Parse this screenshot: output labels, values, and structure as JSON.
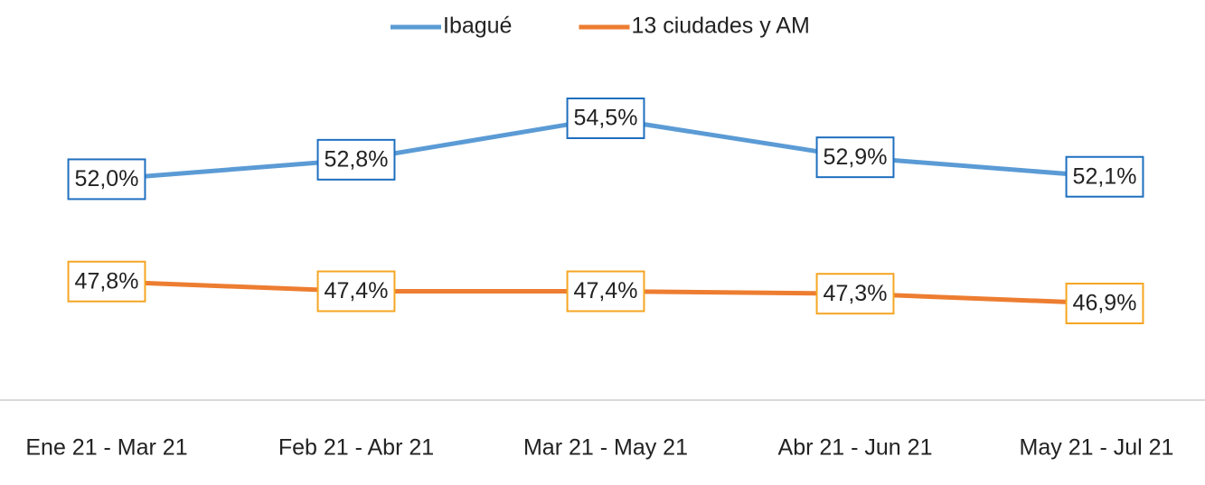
{
  "chart_data": {
    "type": "line",
    "categories": [
      "Ene 21 - Mar 21",
      "Feb 21 - Abr 21",
      "Mar 21 - May 21",
      "Abr 21 - Jun 21",
      "May 21 - Jul 21"
    ],
    "series": [
      {
        "name": "Ibagué",
        "color": "#5b9bd5",
        "label_border": "#1f6fbf",
        "values": [
          52.0,
          52.8,
          54.5,
          52.9,
          52.1
        ],
        "value_labels": [
          "52,0%",
          "52,8%",
          "54,5%",
          "52,9%",
          "52,1%"
        ]
      },
      {
        "name": "13 ciudades y AM",
        "color": "#ed7d31",
        "label_border": "#f5a623",
        "values": [
          47.8,
          47.4,
          47.4,
          47.3,
          46.9
        ],
        "value_labels": [
          "47,8%",
          "47,4%",
          "47,4%",
          "47,3%",
          "46,9%"
        ]
      }
    ],
    "legend": "top"
  }
}
